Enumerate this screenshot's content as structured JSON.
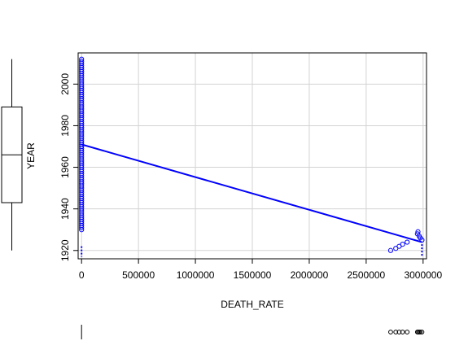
{
  "chart_data": {
    "type": "scatter",
    "xlabel": "DEATH_RATE",
    "ylabel": "YEAR",
    "xlim": [
      -30000,
      3030000
    ],
    "ylim": [
      1916,
      2015
    ],
    "x_ticks": [
      0,
      500000,
      1000000,
      1500000,
      2000000,
      2500000,
      3000000
    ],
    "x_tick_labels": [
      "0",
      "500000",
      "1000000",
      "1500000",
      "2000000",
      "2500000",
      "3000000"
    ],
    "y_ticks": [
      1920,
      1940,
      1960,
      1980,
      2000
    ],
    "y_tick_labels": [
      "1920",
      "1940",
      "1960",
      "1980",
      "2000"
    ],
    "grid": true,
    "point_color": "#0000ff",
    "line_color": "#0000ff",
    "points_cluster_low": {
      "x": 0,
      "year_from": 1930,
      "year_to": 2012
    },
    "points_high": [
      {
        "x": 2715000,
        "y": 1920
      },
      {
        "x": 2760000,
        "y": 1921
      },
      {
        "x": 2790000,
        "y": 1922
      },
      {
        "x": 2820000,
        "y": 1923
      },
      {
        "x": 2860000,
        "y": 1924
      },
      {
        "x": 2950000,
        "y": 1928
      },
      {
        "x": 2955000,
        "y": 1929
      },
      {
        "x": 2965000,
        "y": 1927
      },
      {
        "x": 2975000,
        "y": 1926
      },
      {
        "x": 2990000,
        "y": 1925
      }
    ],
    "fit_line": {
      "x": [
        0,
        2990000
      ],
      "y": [
        1971,
        1924
      ]
    },
    "boxplot_y": {
      "min": 1920,
      "q1": 1943,
      "median": 1966,
      "q3": 1989,
      "max": 2012
    },
    "boxplot_x": {
      "min": 0,
      "q1": 0,
      "median": 0,
      "q3": 0,
      "max": 0
    }
  }
}
